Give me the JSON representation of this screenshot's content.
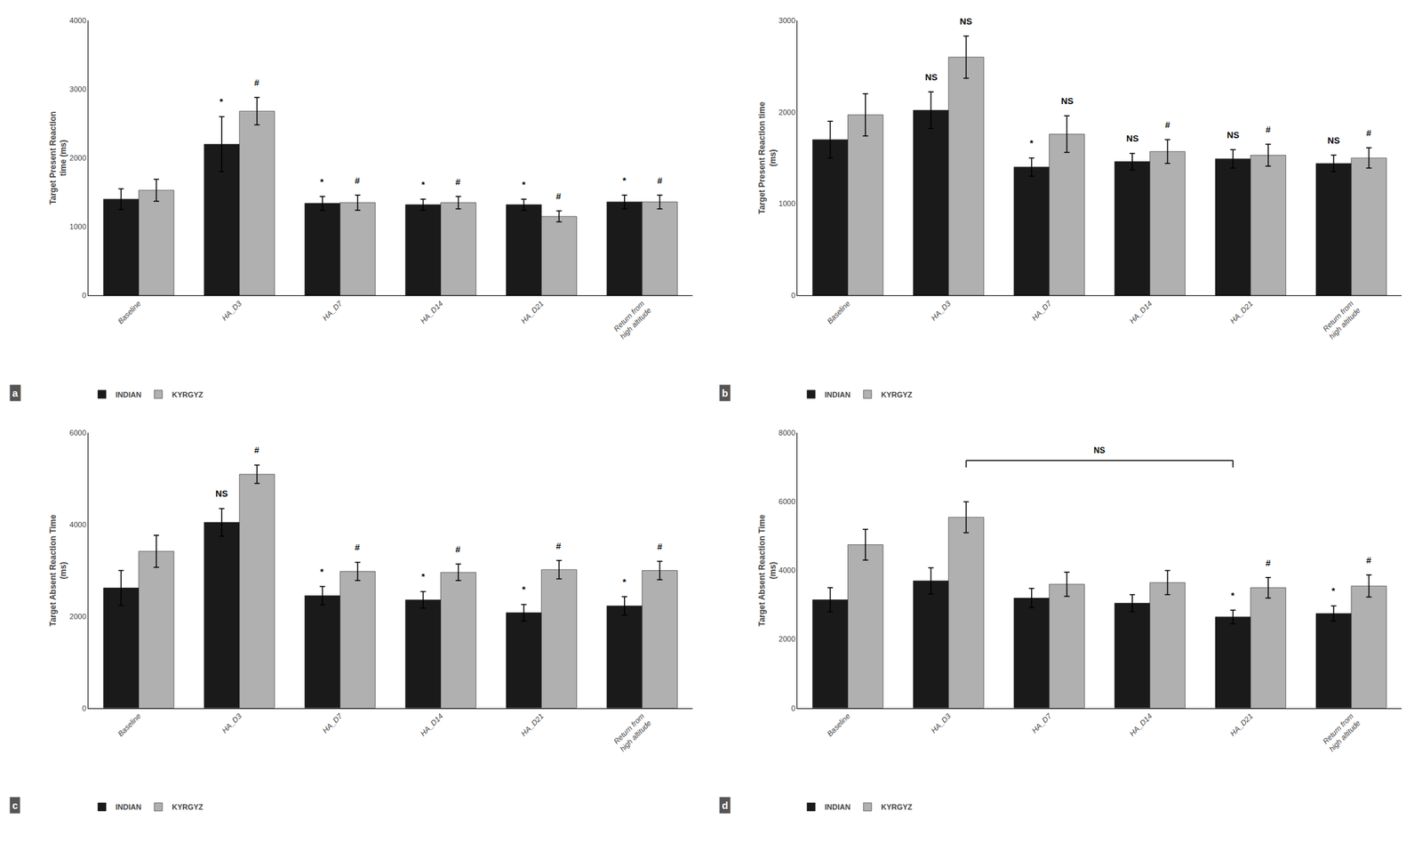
{
  "chart_data": [
    {
      "type": "bar",
      "panel_label": "a",
      "categories": [
        "Baseline",
        "HA_D3",
        "HA_D7",
        "HA_D14",
        "HA_D21",
        "Return from\nhigh altitude"
      ],
      "ylabel": "Target Present Reaction\ntime (ms)",
      "ylim": [
        0,
        4000
      ],
      "yticks": [
        0,
        1000,
        2000,
        3000,
        4000
      ],
      "grid": false,
      "legend": "below",
      "series": [
        {
          "name": "INDIAN",
          "color": "#1a1a1a",
          "values": [
            1400,
            2200,
            1340,
            1320,
            1320,
            1360
          ],
          "errors": [
            150,
            400,
            100,
            80,
            80,
            100
          ],
          "annotations": [
            null,
            "*",
            "*",
            "*",
            "*",
            "*"
          ]
        },
        {
          "name": "KYRGYZ",
          "color": "#b0b0b0",
          "values": [
            1530,
            2680,
            1350,
            1350,
            1150,
            1360
          ],
          "errors": [
            160,
            200,
            110,
            90,
            80,
            100
          ],
          "annotations": [
            null,
            "#",
            "#",
            "#",
            "#",
            "#"
          ]
        }
      ]
    },
    {
      "type": "bar",
      "panel_label": "b",
      "categories": [
        "Baseline",
        "HA_D3",
        "HA_D7",
        "HA_D14",
        "HA_D21",
        "Return from\nhigh altitude"
      ],
      "ylabel": "Target Present Reaction time\n(ms)",
      "ylim": [
        0,
        3000
      ],
      "yticks": [
        0,
        1000,
        2000,
        3000
      ],
      "grid": false,
      "legend": "below",
      "series": [
        {
          "name": "INDIAN",
          "color": "#1a1a1a",
          "values": [
            1700,
            2020,
            1400,
            1460,
            1490,
            1440
          ],
          "errors": [
            200,
            200,
            100,
            90,
            100,
            90
          ],
          "annotations": [
            null,
            "NS",
            "*",
            "NS",
            "NS",
            "NS"
          ]
        },
        {
          "name": "KYRGYZ",
          "color": "#b0b0b0",
          "values": [
            1970,
            2600,
            1760,
            1570,
            1530,
            1500
          ],
          "errors": [
            230,
            230,
            200,
            130,
            120,
            110
          ],
          "annotations": [
            null,
            "NS",
            "NS",
            "#",
            "#",
            "#"
          ]
        }
      ]
    },
    {
      "type": "bar",
      "panel_label": "c",
      "categories": [
        "Baseline",
        "HA_D3",
        "HA_D7",
        "HA_D14",
        "HA_D21",
        "Return from\nhigh altitude"
      ],
      "ylabel": "Target Absent Reaction Time\n(ms)",
      "ylim": [
        0,
        6000
      ],
      "yticks": [
        0,
        2000,
        4000,
        6000
      ],
      "grid": false,
      "legend": "below",
      "series": [
        {
          "name": "INDIAN",
          "color": "#1a1a1a",
          "values": [
            2620,
            4050,
            2450,
            2360,
            2080,
            2230
          ],
          "errors": [
            380,
            300,
            200,
            180,
            180,
            200
          ],
          "annotations": [
            null,
            "NS",
            "*",
            "*",
            "*",
            "*"
          ]
        },
        {
          "name": "KYRGYZ",
          "color": "#b0b0b0",
          "values": [
            3420,
            5100,
            2980,
            2960,
            3020,
            3000
          ],
          "errors": [
            350,
            200,
            200,
            180,
            200,
            200
          ],
          "annotations": [
            null,
            "#",
            "#",
            "#",
            "#",
            "#"
          ]
        }
      ]
    },
    {
      "type": "bar",
      "panel_label": "d",
      "categories": [
        "Baseline",
        "HA_D3",
        "HA_D7",
        "HA_D14",
        "HA_D21",
        "Return from\nhigh altitude"
      ],
      "ylabel": "Target Absent Reaction Time\n(ms)",
      "ylim": [
        0,
        8000
      ],
      "yticks": [
        0,
        2000,
        4000,
        6000,
        8000
      ],
      "grid": false,
      "legend": "below",
      "series": [
        {
          "name": "INDIAN",
          "color": "#1a1a1a",
          "values": [
            3150,
            3700,
            3200,
            3050,
            2650,
            2750
          ],
          "errors": [
            350,
            380,
            280,
            250,
            200,
            220
          ],
          "annotations": [
            null,
            null,
            null,
            null,
            "*",
            "*"
          ]
        },
        {
          "name": "KYRGYZ",
          "color": "#b0b0b0",
          "values": [
            4750,
            5550,
            3600,
            3650,
            3500,
            3550
          ],
          "errors": [
            450,
            450,
            350,
            350,
            300,
            320
          ],
          "annotations": [
            null,
            null,
            null,
            null,
            "#",
            "#"
          ]
        }
      ],
      "bracket": {
        "from": "HA_D3",
        "to": "HA_D21",
        "y": 7200,
        "label": "NS"
      }
    }
  ]
}
